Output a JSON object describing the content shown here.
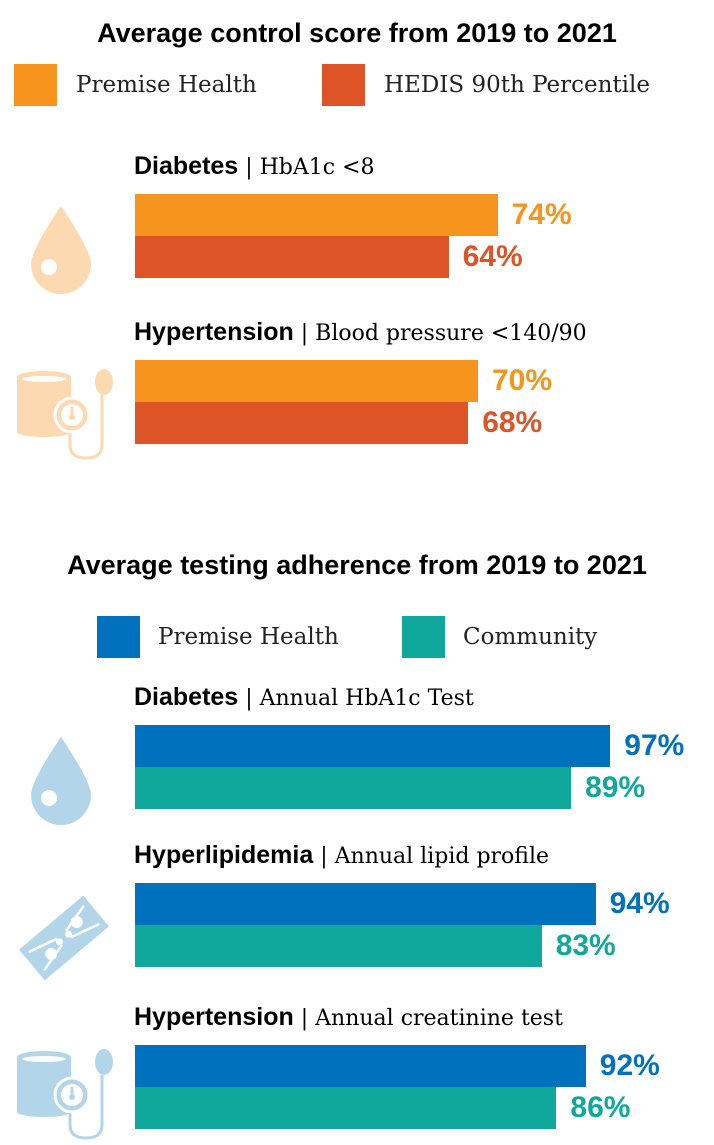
{
  "chart_data": [
    {
      "type": "bar",
      "title": "Average control score from 2019 to 2021",
      "legend": [
        {
          "name": "Premise Health",
          "color": "#F7941D"
        },
        {
          "name": "HEDIS 90th Percentile",
          "color": "#DD5426"
        }
      ],
      "groups": [
        {
          "label": "Diabetes",
          "sub": "HbA1c <8",
          "icon": "water-drop-icon",
          "values": [
            74,
            64
          ],
          "labels": [
            "74%",
            "64%"
          ]
        },
        {
          "label": "Hypertension",
          "sub": "Blood pressure <140/90",
          "icon": "blood-pressure-icon",
          "values": [
            70,
            68
          ],
          "labels": [
            "70%",
            "68%"
          ]
        }
      ],
      "ylim": [
        0,
        100
      ]
    },
    {
      "type": "bar",
      "title": "Average testing adherence from 2019 to 2021",
      "legend": [
        {
          "name": "Premise Health",
          "color": "#0071BC"
        },
        {
          "name": "Community",
          "color": "#0FA89A"
        }
      ],
      "groups": [
        {
          "label": "Diabetes",
          "sub": "Annual HbA1c Test",
          "icon": "water-drop-icon",
          "values": [
            97,
            89
          ],
          "labels": [
            "97%",
            "89%"
          ]
        },
        {
          "label": "Hyperlipidemia",
          "sub": "Annual lipid profile",
          "icon": "lipid-test-icon",
          "values": [
            94,
            83
          ],
          "labels": [
            "94%",
            "83%"
          ]
        },
        {
          "label": "Hypertension",
          "sub": "Annual creatinine test",
          "icon": "blood-pressure-icon",
          "values": [
            92,
            86
          ],
          "labels": [
            "92%",
            "86%"
          ]
        }
      ],
      "ylim": [
        0,
        100
      ]
    }
  ]
}
